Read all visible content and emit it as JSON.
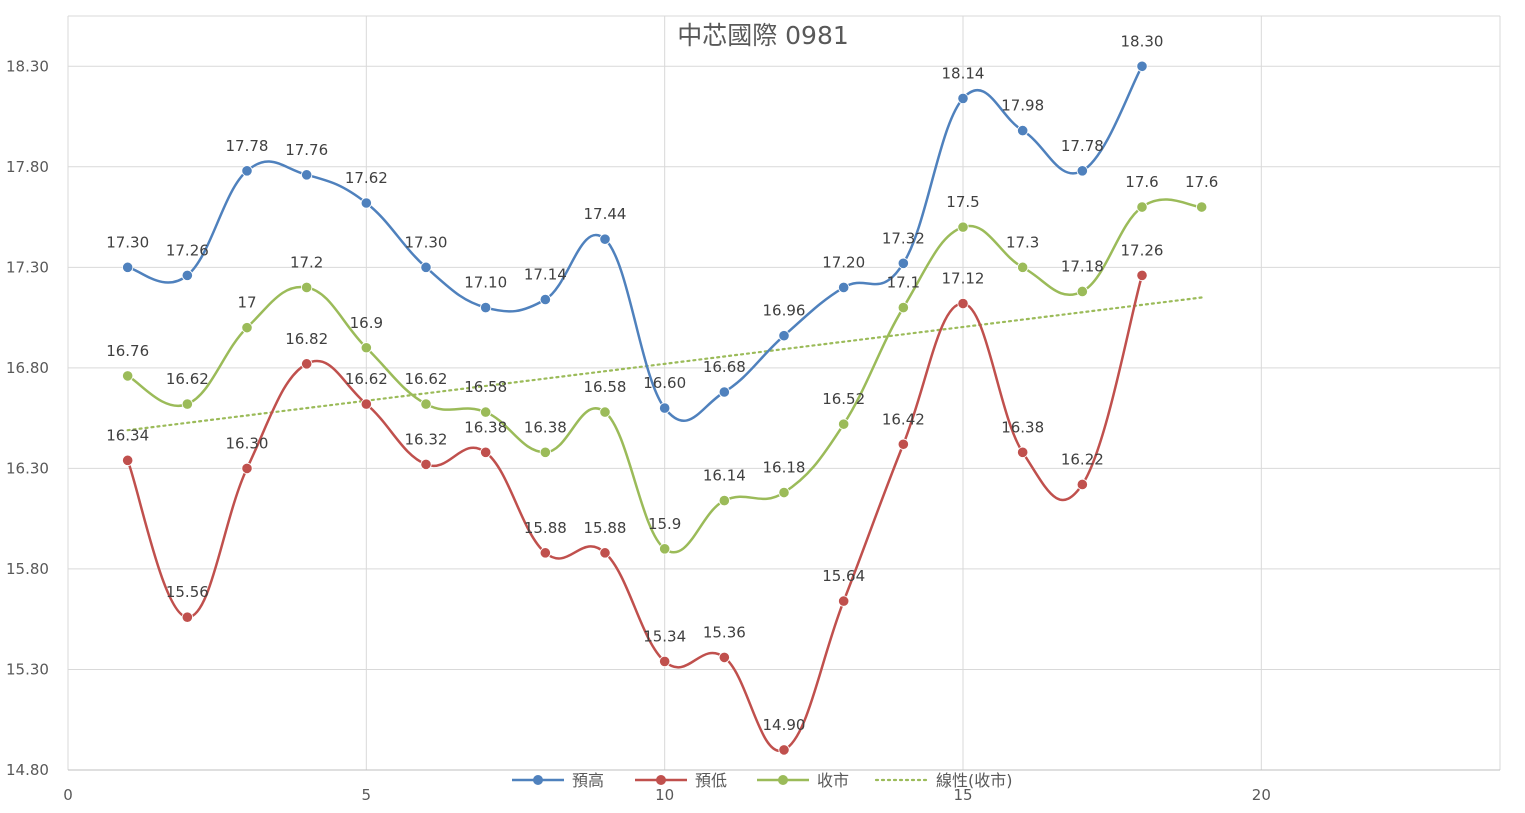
{
  "chart_data": {
    "type": "line",
    "title": "中芯國際  0981",
    "xlabel": "",
    "ylabel": "",
    "xlim": [
      0,
      24
    ],
    "ylim": [
      14.8,
      18.55
    ],
    "xticks": [
      0,
      5,
      10,
      15,
      20
    ],
    "xtick_labels": [
      "0",
      "5",
      "10",
      "15",
      "20"
    ],
    "yticks": [
      14.8,
      15.3,
      15.8,
      16.3,
      16.8,
      17.3,
      17.8,
      18.3
    ],
    "ytick_labels": [
      "14.80",
      "15.30",
      "15.80",
      "16.30",
      "16.80",
      "17.30",
      "17.80",
      "18.30"
    ],
    "grid": "both",
    "legend_position": "bottom",
    "series": [
      {
        "name": "預高",
        "color": "#4f81bd",
        "marker": "circle",
        "smooth": true,
        "x": [
          1,
          2,
          3,
          4,
          5,
          6,
          7,
          8,
          9,
          10,
          11,
          12,
          13,
          14,
          15,
          16,
          17,
          18
        ],
        "values": [
          17.3,
          17.26,
          17.78,
          17.76,
          17.62,
          17.3,
          17.1,
          17.14,
          17.44,
          16.6,
          16.68,
          16.96,
          17.2,
          17.32,
          18.14,
          17.98,
          17.78,
          18.3
        ],
        "labels": [
          "17.30",
          "17.26",
          "17.78",
          "17.76",
          "17.62",
          "17.30",
          "17.10",
          "17.14",
          "17.44",
          "16.60",
          "16.68",
          "16.96",
          "17.20",
          "17.32",
          "18.14",
          "17.98",
          "17.78",
          "18.30"
        ]
      },
      {
        "name": "預低",
        "color": "#c0504d",
        "marker": "circle",
        "smooth": true,
        "x": [
          1,
          2,
          3,
          4,
          5,
          6,
          7,
          8,
          9,
          10,
          11,
          12,
          13,
          14,
          15,
          16,
          17,
          18
        ],
        "values": [
          16.34,
          15.56,
          16.3,
          16.82,
          16.62,
          16.32,
          16.38,
          15.88,
          15.88,
          15.34,
          15.36,
          14.9,
          15.64,
          16.42,
          17.12,
          16.38,
          16.22,
          17.26
        ],
        "labels": [
          "16.34",
          "15.56",
          "16.30",
          "16.82",
          "16.62",
          "16.32",
          "16.38",
          "15.88",
          "15.88",
          "15.34",
          "15.36",
          "14.90",
          "15.64",
          "16.42",
          "17.12",
          "16.38",
          "16.22",
          "17.26"
        ]
      },
      {
        "name": "收市",
        "color": "#9bbb59",
        "marker": "circle",
        "smooth": true,
        "x": [
          1,
          2,
          3,
          4,
          5,
          6,
          7,
          8,
          9,
          10,
          11,
          12,
          13,
          14,
          15,
          16,
          17,
          18,
          19
        ],
        "values": [
          16.76,
          16.62,
          17,
          17.2,
          16.9,
          16.62,
          16.58,
          16.38,
          16.58,
          15.9,
          16.14,
          16.18,
          16.52,
          17.1,
          17.5,
          17.3,
          17.18,
          17.6,
          17.6
        ],
        "labels": [
          "16.76",
          "16.62",
          "17",
          "17.2",
          "16.9",
          "16.62",
          "16.58",
          "16.38",
          "16.58",
          "15.9",
          "16.14",
          "16.18",
          "16.52",
          "17.1",
          "17.5",
          "17.3",
          "17.18",
          "17.6",
          "17.6"
        ]
      }
    ],
    "trendline": {
      "name": "線性(收市)",
      "of_series": "收市",
      "kind": "linear",
      "style": "dotted",
      "color": "#9bbb59",
      "x": [
        1,
        19
      ],
      "values": [
        16.49,
        17.15
      ]
    }
  }
}
